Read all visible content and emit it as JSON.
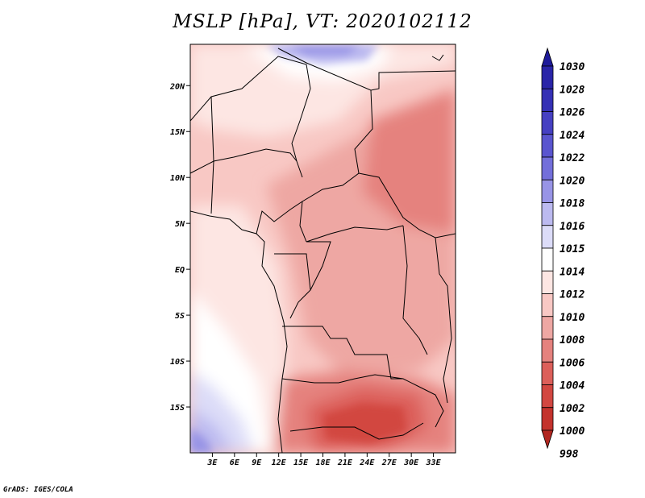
{
  "title": "MSLP [hPa], VT: 2020102112",
  "credit": "GrADS: IGES/COLA",
  "map": {
    "lon_range": [
      0,
      36
    ],
    "lat_range": [
      -20,
      24.5
    ],
    "lat_ticks": [
      {
        "value": 20,
        "label": "20N"
      },
      {
        "value": 15,
        "label": "15N"
      },
      {
        "value": 10,
        "label": "10N"
      },
      {
        "value": 5,
        "label": "5N"
      },
      {
        "value": 0,
        "label": "EQ"
      },
      {
        "value": -5,
        "label": "5S"
      },
      {
        "value": -10,
        "label": "10S"
      },
      {
        "value": -15,
        "label": "15S"
      }
    ],
    "lon_ticks": [
      {
        "value": 3,
        "label": "3E"
      },
      {
        "value": 6,
        "label": "6E"
      },
      {
        "value": 9,
        "label": "9E"
      },
      {
        "value": 12,
        "label": "12E"
      },
      {
        "value": 15,
        "label": "15E"
      },
      {
        "value": 18,
        "label": "18E"
      },
      {
        "value": 21,
        "label": "21E"
      },
      {
        "value": 24,
        "label": "24E"
      },
      {
        "value": 27,
        "label": "27E"
      },
      {
        "value": 30,
        "label": "30E"
      },
      {
        "value": 33,
        "label": "33E"
      }
    ]
  },
  "colorbar": {
    "levels": [
      {
        "label": "1030",
        "color": "#1e1a9a"
      },
      {
        "label": "1028",
        "color": "#2a24a8"
      },
      {
        "label": "1026",
        "color": "#3530b5"
      },
      {
        "label": "1024",
        "color": "#4640c2"
      },
      {
        "label": "1022",
        "color": "#5a55cf"
      },
      {
        "label": "1020",
        "color": "#736fda"
      },
      {
        "label": "1018",
        "color": "#9894e6"
      },
      {
        "label": "1016",
        "color": "#bcbaf0"
      },
      {
        "label": "1015",
        "color": "#dcdcf8"
      },
      {
        "label": "1014",
        "color": "#ffffff"
      },
      {
        "label": "1012",
        "color": "#fde6e3"
      },
      {
        "label": "1010",
        "color": "#f8c8c4"
      },
      {
        "label": "1008",
        "color": "#eea7a3"
      },
      {
        "label": "1006",
        "color": "#e5827e"
      },
      {
        "label": "1004",
        "color": "#dc5f5a"
      },
      {
        "label": "1002",
        "color": "#d24741"
      },
      {
        "label": "1000",
        "color": "#c4332d"
      },
      {
        "label": "998",
        "color": "#b22620"
      }
    ]
  }
}
